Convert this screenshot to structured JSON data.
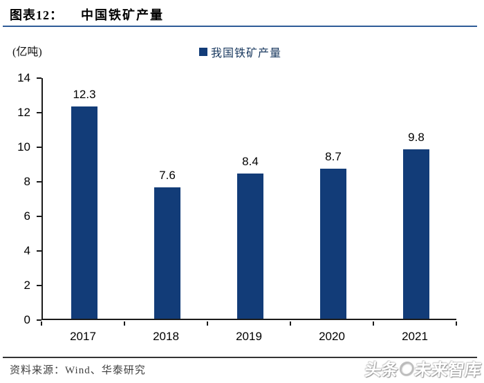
{
  "header": {
    "figure_label": "图表12：",
    "figure_title": "中国铁矿产量"
  },
  "unit_label": "(亿吨)",
  "legend": {
    "label": "我国铁矿产量",
    "swatch_color": "#123c78"
  },
  "chart_data": {
    "type": "bar",
    "title": "中国铁矿产量",
    "series_name": "我国铁矿产量",
    "categories": [
      "2017",
      "2018",
      "2019",
      "2020",
      "2021"
    ],
    "values": [
      12.3,
      7.6,
      8.4,
      8.7,
      9.8
    ],
    "data_labels": [
      "12.3",
      "7.6",
      "8.4",
      "8.7",
      "9.8"
    ],
    "ylabel": "(亿吨)",
    "ylim": [
      0,
      14
    ],
    "yticks": [
      0,
      2,
      4,
      6,
      8,
      10,
      12,
      14
    ],
    "grid": false,
    "legend_position": "top",
    "bar_color": "#123c78"
  },
  "footer": {
    "source": "资料来源：Wind、华泰研究"
  },
  "watermark": {
    "text_left": "头条",
    "text_right": "未来智库"
  }
}
